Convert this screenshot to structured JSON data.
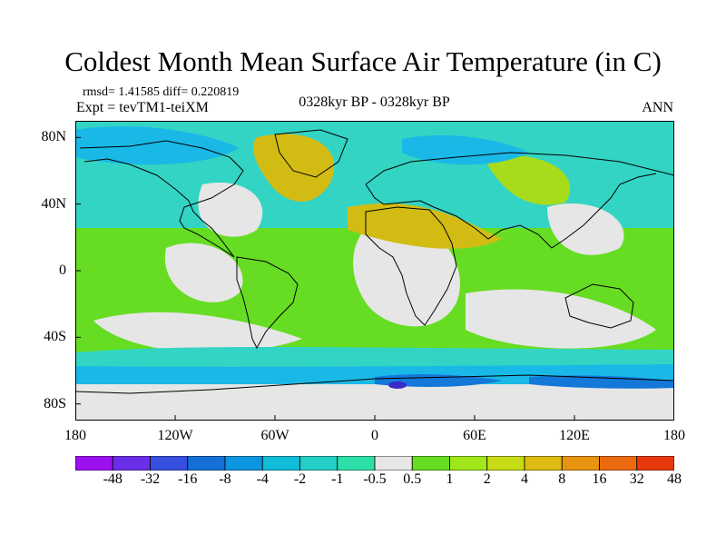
{
  "header": {
    "title": "Coldest Month Mean Surface Air Temperature (in C)",
    "stats": "rmsd= 1.41585 diff= 0.220819",
    "experiment": "Expt = tevTM1-teiXM",
    "period": "0328kyr BP - 0328kyr BP",
    "season": "ANN"
  },
  "map": {
    "projection": "cylindrical-equidistant",
    "lon_range": [
      -180,
      180
    ],
    "lat_range": [
      -90,
      90
    ],
    "x_ticks": [
      {
        "lon": -180,
        "label": "180"
      },
      {
        "lon": -120,
        "label": "120W"
      },
      {
        "lon": -60,
        "label": "60W"
      },
      {
        "lon": 0,
        "label": "0"
      },
      {
        "lon": 60,
        "label": "60E"
      },
      {
        "lon": 120,
        "label": "120E"
      },
      {
        "lon": 180,
        "label": "180"
      }
    ],
    "y_ticks": [
      {
        "lat": 80,
        "label": "80N"
      },
      {
        "lat": 40,
        "label": "40N"
      },
      {
        "lat": 0,
        "label": "0"
      },
      {
        "lat": -40,
        "label": "40S"
      },
      {
        "lat": -80,
        "label": "80S"
      }
    ],
    "field_colors": {
      "no_change": "#e6e6e6",
      "cool_light": "#33d4c4",
      "cool_medium": "#1ab8e6",
      "cool_strong": "#1478d8",
      "cool_extreme": "#3c28c8",
      "warm_light": "#66dd22",
      "warm_medium": "#a8dc1a",
      "warm_strong": "#d2bc14"
    },
    "coastline_color": "#000000"
  },
  "colorbar": {
    "colors": [
      "#9a10f0",
      "#6a2ee8",
      "#3850e0",
      "#1470d6",
      "#0c96e0",
      "#10bcd8",
      "#24cfc8",
      "#2ee0a8",
      "#e6e6e6",
      "#66dd22",
      "#a0e61a",
      "#c8dc16",
      "#dcbc12",
      "#e89410",
      "#ec6a10",
      "#e63a0e"
    ],
    "labels": [
      "-48",
      "-32",
      "-16",
      "-8",
      "-4",
      "-2",
      "-1",
      "-0.5",
      "0.5",
      "1",
      "2",
      "4",
      "8",
      "16",
      "32",
      "48"
    ]
  }
}
